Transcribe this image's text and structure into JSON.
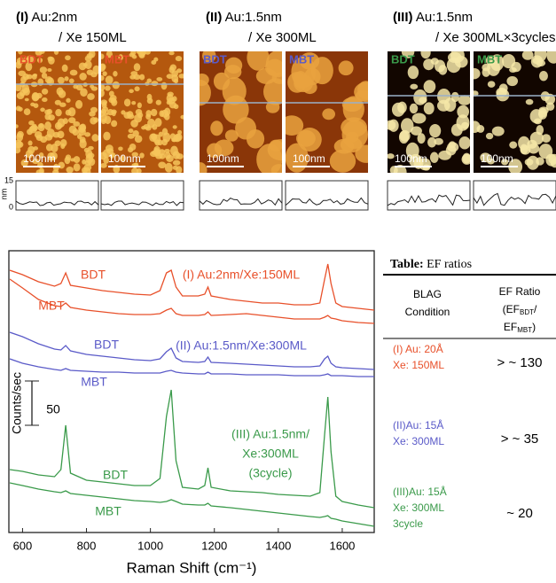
{
  "afm": {
    "panels": [
      {
        "tag": "(I)",
        "title": "Au:2nm",
        "subtitle": "/ Xe 150ML",
        "label_color": "#e8502a",
        "images": [
          {
            "label": "BDT",
            "scale": "100nm"
          },
          {
            "label": "MBT",
            "scale": "100nm"
          }
        ]
      },
      {
        "tag": "(II)",
        "title": "Au:1.5nm",
        "subtitle": "/ Xe 300ML",
        "label_color": "#5a5ac8",
        "images": [
          {
            "label": "BDT",
            "scale": "100nm"
          },
          {
            "label": "MBT",
            "scale": "100nm"
          }
        ]
      },
      {
        "tag": "(III)",
        "title": "Au:1.5nm",
        "subtitle": "/ Xe 300ML×3cycles",
        "label_color": "#3a9a4a",
        "images": [
          {
            "label": "BDT",
            "scale": "100nm"
          },
          {
            "label": "MBT",
            "scale": "100nm"
          }
        ]
      }
    ],
    "profile_axis": {
      "ticks": [
        15,
        0
      ],
      "unit": "nm"
    }
  },
  "chart_data": {
    "type": "line",
    "x_label": "Raman Shift (cm⁻¹)",
    "y_label": "Counts/sec",
    "scale_bar": 50,
    "xlim": [
      560,
      1700
    ],
    "xticks": [
      600,
      800,
      1000,
      1200,
      1400,
      1600
    ],
    "ylim": [
      0,
      310
    ],
    "x": [
      560,
      600,
      650,
      700,
      720,
      735,
      750,
      800,
      850,
      900,
      950,
      1000,
      1030,
      1050,
      1065,
      1080,
      1100,
      1150,
      1170,
      1180,
      1190,
      1250,
      1300,
      1350,
      1400,
      1450,
      1500,
      1530,
      1545,
      1555,
      1565,
      1580,
      1600,
      1650,
      1700
    ],
    "series": [
      {
        "name": "BDT",
        "color": "#e8502a",
        "values": [
          295,
          290,
          282,
          277,
          280,
          292,
          278,
          275,
          272,
          270,
          268,
          267,
          272,
          292,
          295,
          276,
          266,
          266,
          268,
          276,
          266,
          262,
          260,
          258,
          258,
          256,
          256,
          258,
          285,
          302,
          280,
          258,
          254,
          252,
          250
        ]
      },
      {
        "name": "MBT",
        "color": "#e8502a",
        "values": [
          285,
          275,
          262,
          255,
          254,
          258,
          253,
          250,
          248,
          246,
          245,
          245,
          246,
          250,
          252,
          246,
          244,
          244,
          245,
          248,
          244,
          245,
          246,
          244,
          242,
          240,
          240,
          240,
          242,
          244,
          241,
          240,
          238,
          236,
          235
        ]
      },
      {
        "name": "BDT",
        "color": "#5a5ac8",
        "values": [
          225,
          220,
          212,
          206,
          205,
          210,
          204,
          200,
          198,
          196,
          194,
          193,
          195,
          203,
          207,
          196,
          192,
          191,
          192,
          197,
          191,
          190,
          189,
          188,
          187,
          186,
          186,
          187,
          195,
          198,
          190,
          186,
          185,
          184,
          183
        ]
      },
      {
        "name": "MBT",
        "color": "#5a5ac8",
        "values": [
          195,
          190,
          186,
          183,
          182,
          184,
          182,
          181,
          180,
          180,
          179,
          179,
          179,
          181,
          182,
          180,
          179,
          178,
          178,
          180,
          178,
          178,
          177,
          177,
          177,
          176,
          176,
          176,
          177,
          178,
          176,
          176,
          176,
          175,
          175
        ]
      },
      {
        "name": "BDT",
        "color": "#3a9a4a",
        "values": [
          70,
          68,
          64,
          62,
          70,
          120,
          66,
          58,
          56,
          54,
          52,
          52,
          60,
          130,
          160,
          80,
          50,
          48,
          52,
          72,
          50,
          46,
          45,
          44,
          42,
          41,
          40,
          44,
          110,
          152,
          90,
          40,
          34,
          30,
          27
        ]
      },
      {
        "name": "MBT",
        "color": "#3a9a4a",
        "values": [
          55,
          52,
          48,
          45,
          44,
          46,
          43,
          41,
          39,
          37,
          35,
          34,
          33,
          34,
          36,
          34,
          31,
          30,
          30,
          32,
          29,
          27,
          25,
          23,
          21,
          19,
          17,
          16,
          17,
          18,
          15,
          14,
          12,
          9,
          6
        ]
      }
    ],
    "conditions": [
      [
        "(I) Au:2nm/Xe:150ML"
      ],
      [
        "(II) Au:1.5nm/Xe:300ML"
      ],
      [
        "(III) Au:1.5nm/",
        "Xe:300ML",
        "(3cycle)"
      ]
    ]
  },
  "table": {
    "tag": "Table:",
    "title": "EF ratios",
    "header": {
      "condition": [
        "BLAG",
        "Condition"
      ],
      "ratio": {
        "line1": "EF Ratio",
        "line2": [
          "(EF",
          "BDT",
          "/"
        ],
        "line3": [
          "EF",
          "MBT",
          ")"
        ]
      }
    },
    "rows": [
      {
        "condition": [
          "(I) Au: 20Å",
          "Xe: 150ML"
        ],
        "ratio": "> ~ 130",
        "color": "#e8502a"
      },
      {
        "condition": [
          "(II)Au: 15Å",
          "Xe: 300ML"
        ],
        "ratio": "> ~ 35",
        "color": "#5a5ac8"
      },
      {
        "condition": [
          "(III)Au: 15Å",
          "Xe: 300ML",
          "3cycle"
        ],
        "ratio": "~ 20",
        "color": "#3a9a4a"
      }
    ]
  }
}
